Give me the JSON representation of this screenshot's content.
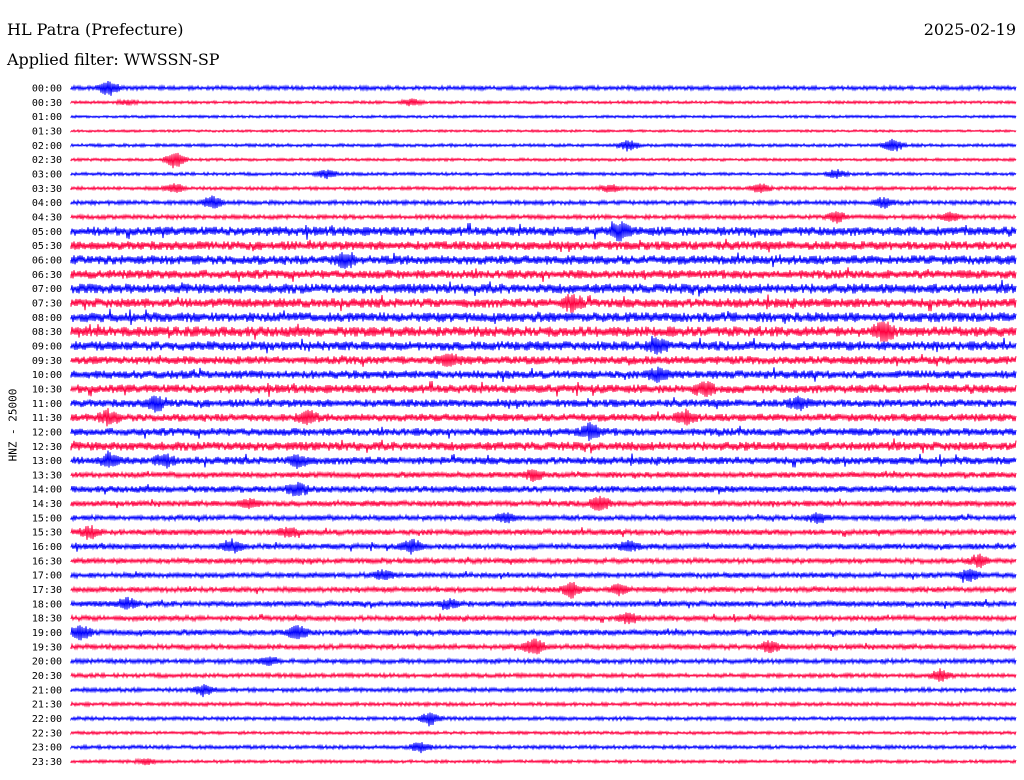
{
  "header": {
    "station": "HL Patra (Prefecture)",
    "date": "2025-02-19",
    "filter": "Applied filter: WWSSN-SP"
  },
  "chart_data": {
    "type": "line",
    "title": "HL Patra (Prefecture)",
    "subtitle": "Applied filter: WWSSN-SP",
    "ylabel": "HNZ - 25000",
    "colors": [
      "#0000ff",
      "#ff0040"
    ],
    "rows": [
      {
        "label": "00:00",
        "activity": 0.25,
        "events": [
          {
            "pos": 0.04,
            "amp": 0.9
          }
        ]
      },
      {
        "label": "00:30",
        "activity": 0.12,
        "events": [
          {
            "pos": 0.06,
            "amp": 0.3
          },
          {
            "pos": 0.36,
            "amp": 0.4
          }
        ]
      },
      {
        "label": "01:00",
        "activity": 0.1,
        "events": []
      },
      {
        "label": "01:30",
        "activity": 0.08,
        "events": []
      },
      {
        "label": "02:00",
        "activity": 0.15,
        "events": [
          {
            "pos": 0.59,
            "amp": 0.6
          },
          {
            "pos": 0.87,
            "amp": 0.8
          }
        ]
      },
      {
        "label": "02:30",
        "activity": 0.12,
        "events": [
          {
            "pos": 0.11,
            "amp": 1.0
          }
        ]
      },
      {
        "label": "03:00",
        "activity": 0.15,
        "events": [
          {
            "pos": 0.27,
            "amp": 0.5
          },
          {
            "pos": 0.81,
            "amp": 0.5
          }
        ]
      },
      {
        "label": "03:30",
        "activity": 0.18,
        "events": [
          {
            "pos": 0.11,
            "amp": 0.5
          },
          {
            "pos": 0.57,
            "amp": 0.4
          },
          {
            "pos": 0.73,
            "amp": 0.5
          }
        ]
      },
      {
        "label": "04:00",
        "activity": 0.25,
        "events": [
          {
            "pos": 0.15,
            "amp": 0.7
          },
          {
            "pos": 0.86,
            "amp": 0.6
          }
        ]
      },
      {
        "label": "04:30",
        "activity": 0.25,
        "events": [
          {
            "pos": 0.81,
            "amp": 0.6
          },
          {
            "pos": 0.93,
            "amp": 0.5
          }
        ]
      },
      {
        "label": "05:00",
        "activity": 0.75,
        "events": [
          {
            "pos": 0.58,
            "amp": 0.9
          }
        ]
      },
      {
        "label": "05:30",
        "activity": 0.7,
        "events": []
      },
      {
        "label": "06:00",
        "activity": 0.75,
        "events": [
          {
            "pos": 0.29,
            "amp": 0.8
          }
        ]
      },
      {
        "label": "06:30",
        "activity": 0.7,
        "events": []
      },
      {
        "label": "07:00",
        "activity": 0.8,
        "events": []
      },
      {
        "label": "07:30",
        "activity": 0.75,
        "events": [
          {
            "pos": 0.53,
            "amp": 0.8
          }
        ]
      },
      {
        "label": "08:00",
        "activity": 0.8,
        "events": []
      },
      {
        "label": "08:30",
        "activity": 0.85,
        "events": [
          {
            "pos": 0.86,
            "amp": 1.0
          }
        ]
      },
      {
        "label": "09:00",
        "activity": 0.75,
        "events": [
          {
            "pos": 0.62,
            "amp": 0.8
          }
        ]
      },
      {
        "label": "09:30",
        "activity": 0.65,
        "events": [
          {
            "pos": 0.4,
            "amp": 0.7
          }
        ]
      },
      {
        "label": "10:00",
        "activity": 0.65,
        "events": [
          {
            "pos": 0.62,
            "amp": 0.7
          }
        ]
      },
      {
        "label": "10:30",
        "activity": 0.7,
        "events": [
          {
            "pos": 0.67,
            "amp": 0.7
          }
        ]
      },
      {
        "label": "11:00",
        "activity": 0.6,
        "events": [
          {
            "pos": 0.09,
            "amp": 0.8
          },
          {
            "pos": 0.77,
            "amp": 0.6
          }
        ]
      },
      {
        "label": "11:30",
        "activity": 0.6,
        "events": [
          {
            "pos": 0.04,
            "amp": 0.7
          },
          {
            "pos": 0.25,
            "amp": 0.7
          },
          {
            "pos": 0.65,
            "amp": 0.7
          }
        ]
      },
      {
        "label": "12:00",
        "activity": 0.6,
        "events": [
          {
            "pos": 0.55,
            "amp": 0.8
          }
        ]
      },
      {
        "label": "12:30",
        "activity": 0.7,
        "events": []
      },
      {
        "label": "13:00",
        "activity": 0.6,
        "events": [
          {
            "pos": 0.04,
            "amp": 0.6
          },
          {
            "pos": 0.1,
            "amp": 0.6
          },
          {
            "pos": 0.24,
            "amp": 0.6
          }
        ]
      },
      {
        "label": "13:30",
        "activity": 0.4,
        "events": [
          {
            "pos": 0.49,
            "amp": 0.6
          }
        ]
      },
      {
        "label": "14:00",
        "activity": 0.5,
        "events": [
          {
            "pos": 0.24,
            "amp": 0.7
          }
        ]
      },
      {
        "label": "14:30",
        "activity": 0.4,
        "events": [
          {
            "pos": 0.56,
            "amp": 0.9
          },
          {
            "pos": 0.19,
            "amp": 0.5
          }
        ]
      },
      {
        "label": "15:00",
        "activity": 0.35,
        "events": [
          {
            "pos": 0.46,
            "amp": 0.5
          },
          {
            "pos": 0.79,
            "amp": 0.5
          }
        ]
      },
      {
        "label": "15:30",
        "activity": 0.4,
        "events": [
          {
            "pos": 0.02,
            "amp": 0.7
          },
          {
            "pos": 0.23,
            "amp": 0.5
          }
        ]
      },
      {
        "label": "16:00",
        "activity": 0.4,
        "events": [
          {
            "pos": 0.17,
            "amp": 0.7
          },
          {
            "pos": 0.36,
            "amp": 0.8
          },
          {
            "pos": 0.59,
            "amp": 0.6
          }
        ]
      },
      {
        "label": "16:30",
        "activity": 0.35,
        "events": [
          {
            "pos": 0.96,
            "amp": 0.7
          }
        ]
      },
      {
        "label": "17:00",
        "activity": 0.35,
        "events": [
          {
            "pos": 0.33,
            "amp": 0.6
          },
          {
            "pos": 0.95,
            "amp": 0.7
          }
        ]
      },
      {
        "label": "17:30",
        "activity": 0.35,
        "events": [
          {
            "pos": 0.53,
            "amp": 0.8
          },
          {
            "pos": 0.58,
            "amp": 0.6
          }
        ]
      },
      {
        "label": "18:00",
        "activity": 0.4,
        "events": [
          {
            "pos": 0.06,
            "amp": 0.6
          },
          {
            "pos": 0.4,
            "amp": 0.5
          }
        ]
      },
      {
        "label": "18:30",
        "activity": 0.35,
        "events": [
          {
            "pos": 0.59,
            "amp": 0.6
          }
        ]
      },
      {
        "label": "19:00",
        "activity": 0.4,
        "events": [
          {
            "pos": 0.01,
            "amp": 0.8
          },
          {
            "pos": 0.24,
            "amp": 0.8
          }
        ]
      },
      {
        "label": "19:30",
        "activity": 0.35,
        "events": [
          {
            "pos": 0.49,
            "amp": 1.0
          },
          {
            "pos": 0.74,
            "amp": 0.6
          }
        ]
      },
      {
        "label": "20:00",
        "activity": 0.3,
        "events": [
          {
            "pos": 0.21,
            "amp": 0.5
          }
        ]
      },
      {
        "label": "20:30",
        "activity": 0.25,
        "events": [
          {
            "pos": 0.92,
            "amp": 0.7
          }
        ]
      },
      {
        "label": "21:00",
        "activity": 0.25,
        "events": [
          {
            "pos": 0.14,
            "amp": 0.6
          }
        ]
      },
      {
        "label": "21:30",
        "activity": 0.2,
        "events": []
      },
      {
        "label": "22:00",
        "activity": 0.2,
        "events": [
          {
            "pos": 0.38,
            "amp": 0.8
          }
        ]
      },
      {
        "label": "22:30",
        "activity": 0.15,
        "events": []
      },
      {
        "label": "23:00",
        "activity": 0.2,
        "events": [
          {
            "pos": 0.37,
            "amp": 0.6
          }
        ]
      },
      {
        "label": "23:30",
        "activity": 0.15,
        "events": [
          {
            "pos": 0.08,
            "amp": 0.3
          }
        ]
      }
    ]
  }
}
